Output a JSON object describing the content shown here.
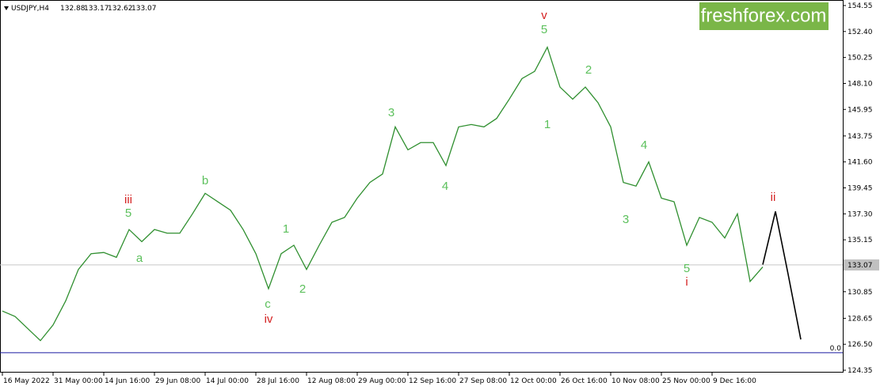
{
  "chart_data": {
    "type": "line",
    "title": "USDJPY,H4",
    "quote": [
      132.88,
      133.17,
      132.62,
      133.07
    ],
    "brand": "freshforex.com",
    "categories": [
      "16 May 2022",
      null,
      null,
      null,
      "31 May 00:00",
      null,
      null,
      null,
      "14 Jun 16:00",
      null,
      null,
      null,
      "29 Jun 08:00",
      null,
      null,
      null,
      "14 Jul 00:00",
      null,
      null,
      null,
      "28 Jul 16:00",
      null,
      null,
      null,
      "12 Aug 08:00",
      null,
      null,
      null,
      "29 Aug 00:00",
      null,
      null,
      null,
      "12 Sep 16:00",
      null,
      null,
      null,
      "27 Sep 08:00",
      null,
      null,
      null,
      "12 Oct 00:00",
      null,
      null,
      null,
      "26 Oct 16:00",
      null,
      null,
      null,
      "10 Nov 08:00",
      null,
      null,
      null,
      "25 Nov 00:00",
      null,
      null,
      null,
      "9 Dec 16:00",
      null,
      null,
      null,
      null,
      null,
      null,
      null
    ],
    "series": [
      {
        "color": "#2f8f2f",
        "values": [
          129.25,
          128.8,
          127.8,
          126.8,
          128.1,
          130.1,
          132.7,
          134.0,
          134.1,
          133.7,
          136.0,
          135.0,
          136.0,
          135.7,
          135.7,
          137.3,
          139.0,
          138.3,
          137.6,
          136.0,
          134.0,
          131.1,
          134.0,
          134.7,
          132.7,
          134.7,
          136.6,
          137.0,
          138.6,
          139.9,
          140.6,
          144.5,
          142.6,
          143.2,
          143.2,
          141.3,
          144.5,
          144.7,
          144.5,
          145.2,
          146.8,
          148.5,
          149.1,
          151.1,
          147.8,
          146.8,
          147.8,
          146.5,
          144.5,
          139.9,
          139.6,
          141.6,
          138.6,
          138.3,
          134.7,
          137.0,
          136.6,
          135.3,
          137.3,
          131.7,
          132.9,
          null,
          null,
          null
        ]
      },
      {
        "color": "#000000",
        "values": [
          null,
          null,
          null,
          null,
          null,
          null,
          null,
          null,
          null,
          null,
          null,
          null,
          null,
          null,
          null,
          null,
          null,
          null,
          null,
          null,
          null,
          null,
          null,
          null,
          null,
          null,
          null,
          null,
          null,
          null,
          null,
          null,
          null,
          null,
          null,
          null,
          null,
          null,
          null,
          null,
          null,
          null,
          null,
          null,
          null,
          null,
          null,
          null,
          null,
          null,
          null,
          null,
          null,
          null,
          null,
          null,
          null,
          null,
          null,
          null,
          133.1,
          137.5,
          132.3,
          126.9
        ]
      }
    ],
    "ylim": [
      124.35,
      154.55
    ],
    "yticks": [
      154.55,
      {
        "value": 152.4,
        "label": "152.40"
      },
      150.25,
      {
        "value": 148.1,
        "label": "148.10"
      },
      145.95,
      143.75,
      {
        "value": 141.6,
        "label": "141.60"
      },
      139.45,
      {
        "value": 137.3,
        "label": "137.30"
      },
      135.15,
      130.85,
      128.65,
      {
        "value": 126.5,
        "label": "126.50"
      },
      124.35
    ],
    "level": {
      "value": 125.8,
      "label": "0.0"
    },
    "annotations": [
      {
        "text": "v",
        "color": "#d42020"
      },
      {
        "text": "5",
        "color": "#5cc05c"
      },
      {
        "text": "1",
        "color": "#5cc05c"
      },
      {
        "text": "2",
        "color": "#5cc05c"
      },
      {
        "text": "3",
        "color": "#5cc05c"
      },
      {
        "text": "4",
        "color": "#5cc05c"
      },
      {
        "text": "iii",
        "color": "#d42020"
      },
      {
        "text": "5",
        "color": "#5cc05c"
      },
      {
        "text": "a",
        "color": "#5cc05c"
      },
      {
        "text": "b",
        "color": "#5cc05c"
      },
      {
        "text": "1",
        "color": "#5cc05c"
      },
      {
        "text": "2",
        "color": "#5cc05c"
      },
      {
        "text": "c",
        "color": "#5cc05c"
      },
      {
        "text": "iv",
        "color": "#d42020"
      },
      {
        "text": "4",
        "color": "#5cc05c"
      },
      {
        "text": "3",
        "color": "#5cc05c"
      },
      {
        "text": "5",
        "color": "#5cc05c"
      },
      {
        "text": "i",
        "color": "#d42020"
      },
      {
        "text": "ii",
        "color": "#d42020"
      }
    ]
  }
}
